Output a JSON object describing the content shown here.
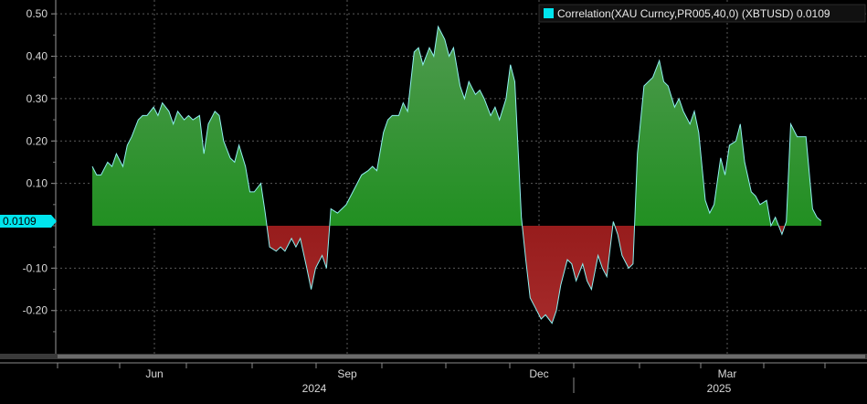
{
  "chart_data": {
    "type": "area",
    "legend": {
      "label": "Correlation(XAU Curncy,PR005,40,0) (XBTUSD) 0.0109",
      "color": "#00e5ee",
      "placement": "top-right"
    },
    "last_value_label": "0.0109",
    "y_ticks": [
      "0.50",
      "0.40",
      "0.30",
      "0.20",
      "0.10",
      "-0.10",
      "-0.20"
    ],
    "ylim": [
      -0.29,
      0.53
    ],
    "grid": true,
    "x_month_labels": [
      "Jun",
      "Sep",
      "Dec",
      "Mar"
    ],
    "x_year_labels": [
      "2024",
      "2025"
    ],
    "colors": {
      "positive_fill_top": "#4f9a4f",
      "positive_fill_bottom": "#0b8a0b",
      "negative_fill_top": "#7a0000",
      "negative_fill_bottom": "#a52a2a",
      "line": "#8ff0f0",
      "grid": "#5a5a5a",
      "background": "#000000"
    },
    "series": [
      {
        "name": "Correlation(XAU Curncy,PR005,40,0) (XBTUSD)",
        "points": [
          [
            "2024-05-06",
            0.14
          ],
          [
            "2024-05-08",
            0.12
          ],
          [
            "2024-05-10",
            0.12
          ],
          [
            "2024-05-13",
            0.15
          ],
          [
            "2024-05-15",
            0.14
          ],
          [
            "2024-05-17",
            0.17
          ],
          [
            "2024-05-20",
            0.14
          ],
          [
            "2024-05-22",
            0.19
          ],
          [
            "2024-05-24",
            0.21
          ],
          [
            "2024-05-27",
            0.25
          ],
          [
            "2024-05-29",
            0.26
          ],
          [
            "2024-05-31",
            0.26
          ],
          [
            "2024-06-03",
            0.28
          ],
          [
            "2024-06-05",
            0.26
          ],
          [
            "2024-06-07",
            0.29
          ],
          [
            "2024-06-10",
            0.27
          ],
          [
            "2024-06-12",
            0.24
          ],
          [
            "2024-06-14",
            0.27
          ],
          [
            "2024-06-17",
            0.25
          ],
          [
            "2024-06-19",
            0.26
          ],
          [
            "2024-06-21",
            0.25
          ],
          [
            "2024-06-24",
            0.26
          ],
          [
            "2024-06-26",
            0.17
          ],
          [
            "2024-06-28",
            0.24
          ],
          [
            "2024-07-01",
            0.27
          ],
          [
            "2024-07-03",
            0.26
          ],
          [
            "2024-07-05",
            0.2
          ],
          [
            "2024-07-08",
            0.16
          ],
          [
            "2024-07-10",
            0.15
          ],
          [
            "2024-07-12",
            0.19
          ],
          [
            "2024-07-15",
            0.14
          ],
          [
            "2024-07-17",
            0.08
          ],
          [
            "2024-07-19",
            0.08
          ],
          [
            "2024-07-22",
            0.1
          ],
          [
            "2024-07-24",
            0.03
          ],
          [
            "2024-07-26",
            -0.05
          ],
          [
            "2024-07-29",
            -0.06
          ],
          [
            "2024-07-31",
            -0.05
          ],
          [
            "2024-08-02",
            -0.06
          ],
          [
            "2024-08-05",
            -0.03
          ],
          [
            "2024-08-07",
            -0.05
          ],
          [
            "2024-08-09",
            -0.03
          ],
          [
            "2024-08-12",
            -0.1
          ],
          [
            "2024-08-14",
            -0.15
          ],
          [
            "2024-08-16",
            -0.1
          ],
          [
            "2024-08-19",
            -0.07
          ],
          [
            "2024-08-21",
            -0.1
          ],
          [
            "2024-08-23",
            0.04
          ],
          [
            "2024-08-26",
            0.03
          ],
          [
            "2024-08-28",
            0.04
          ],
          [
            "2024-08-30",
            0.05
          ],
          [
            "2024-09-02",
            0.08
          ],
          [
            "2024-09-04",
            0.1
          ],
          [
            "2024-09-06",
            0.12
          ],
          [
            "2024-09-09",
            0.13
          ],
          [
            "2024-09-11",
            0.14
          ],
          [
            "2024-09-13",
            0.13
          ],
          [
            "2024-09-16",
            0.22
          ],
          [
            "2024-09-18",
            0.25
          ],
          [
            "2024-09-20",
            0.26
          ],
          [
            "2024-09-23",
            0.26
          ],
          [
            "2024-09-25",
            0.29
          ],
          [
            "2024-09-27",
            0.27
          ],
          [
            "2024-09-30",
            0.41
          ],
          [
            "2024-10-02",
            0.42
          ],
          [
            "2024-10-04",
            0.38
          ],
          [
            "2024-10-07",
            0.42
          ],
          [
            "2024-10-09",
            0.4
          ],
          [
            "2024-10-11",
            0.47
          ],
          [
            "2024-10-14",
            0.44
          ],
          [
            "2024-10-16",
            0.4
          ],
          [
            "2024-10-18",
            0.42
          ],
          [
            "2024-10-21",
            0.33
          ],
          [
            "2024-10-23",
            0.3
          ],
          [
            "2024-10-25",
            0.34
          ],
          [
            "2024-10-28",
            0.31
          ],
          [
            "2024-10-30",
            0.32
          ],
          [
            "2024-11-01",
            0.3
          ],
          [
            "2024-11-04",
            0.26
          ],
          [
            "2024-11-06",
            0.28
          ],
          [
            "2024-11-08",
            0.25
          ],
          [
            "2024-11-11",
            0.3
          ],
          [
            "2024-11-13",
            0.38
          ],
          [
            "2024-11-15",
            0.34
          ],
          [
            "2024-11-18",
            0.02
          ],
          [
            "2024-11-20",
            -0.08
          ],
          [
            "2024-11-22",
            -0.17
          ],
          [
            "2024-11-25",
            -0.2
          ],
          [
            "2024-11-27",
            -0.22
          ],
          [
            "2024-11-29",
            -0.21
          ],
          [
            "2024-12-02",
            -0.23
          ],
          [
            "2024-12-04",
            -0.2
          ],
          [
            "2024-12-06",
            -0.14
          ],
          [
            "2024-12-09",
            -0.08
          ],
          [
            "2024-12-11",
            -0.09
          ],
          [
            "2024-12-13",
            -0.13
          ],
          [
            "2024-12-16",
            -0.09
          ],
          [
            "2024-12-18",
            -0.13
          ],
          [
            "2024-12-20",
            -0.15
          ],
          [
            "2024-12-23",
            -0.07
          ],
          [
            "2024-12-25",
            -0.1
          ],
          [
            "2024-12-27",
            -0.12
          ],
          [
            "2024-12-30",
            0.01
          ],
          [
            "2025-01-01",
            -0.02
          ],
          [
            "2025-01-03",
            -0.07
          ],
          [
            "2025-01-06",
            -0.1
          ],
          [
            "2025-01-08",
            -0.09
          ],
          [
            "2025-01-10",
            0.17
          ],
          [
            "2025-01-13",
            0.33
          ],
          [
            "2025-01-15",
            0.34
          ],
          [
            "2025-01-17",
            0.35
          ],
          [
            "2025-01-20",
            0.39
          ],
          [
            "2025-01-22",
            0.34
          ],
          [
            "2025-01-24",
            0.33
          ],
          [
            "2025-01-27",
            0.28
          ],
          [
            "2025-01-29",
            0.3
          ],
          [
            "2025-01-31",
            0.27
          ],
          [
            "2025-02-03",
            0.24
          ],
          [
            "2025-02-05",
            0.27
          ],
          [
            "2025-02-07",
            0.22
          ],
          [
            "2025-02-10",
            0.06
          ],
          [
            "2025-02-12",
            0.03
          ],
          [
            "2025-02-14",
            0.05
          ],
          [
            "2025-02-17",
            0.16
          ],
          [
            "2025-02-19",
            0.12
          ],
          [
            "2025-02-21",
            0.19
          ],
          [
            "2025-02-24",
            0.2
          ],
          [
            "2025-02-26",
            0.24
          ],
          [
            "2025-02-28",
            0.15
          ],
          [
            "2025-03-03",
            0.08
          ],
          [
            "2025-03-05",
            0.07
          ],
          [
            "2025-03-07",
            0.05
          ],
          [
            "2025-03-10",
            0.06
          ],
          [
            "2025-03-12",
            0.0
          ],
          [
            "2025-03-14",
            0.02
          ],
          [
            "2025-03-17",
            -0.02
          ],
          [
            "2025-03-19",
            0.01
          ],
          [
            "2025-03-21",
            0.24
          ],
          [
            "2025-03-24",
            0.21
          ],
          [
            "2025-03-26",
            0.21
          ],
          [
            "2025-03-28",
            0.21
          ],
          [
            "2025-03-31",
            0.04
          ],
          [
            "2025-04-02",
            0.02
          ],
          [
            "2025-04-04",
            0.0109
          ]
        ]
      }
    ]
  }
}
